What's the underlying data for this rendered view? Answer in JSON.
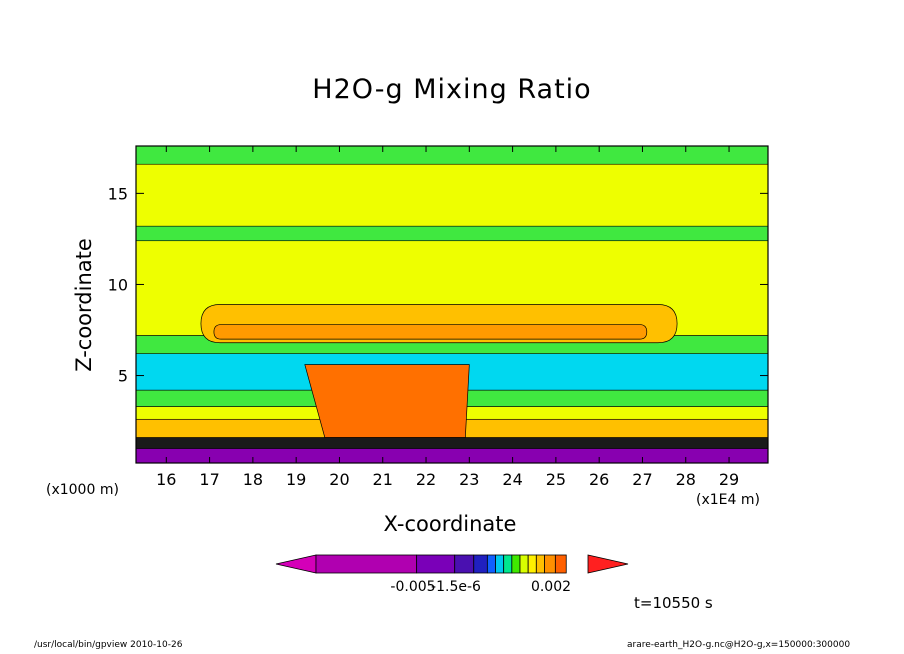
{
  "chart_data": {
    "type": "heatmap",
    "title": "H2O-g Mixing Ratio",
    "xlabel": "X-coordinate",
    "ylabel": "Z-coordinate",
    "x_unit": "(x1E4 m)",
    "y_unit": "(x1000 m)",
    "xlim": [
      15.3,
      29.9
    ],
    "ylim": [
      0.2,
      17.6
    ],
    "x_ticks": [
      16,
      17,
      18,
      19,
      20,
      21,
      22,
      23,
      24,
      25,
      26,
      27,
      28,
      29
    ],
    "x_tick_labels": [
      "16",
      "17",
      "18",
      "19",
      "20",
      "21",
      "22",
      "23",
      "24",
      "25",
      "26",
      "27",
      "28",
      "29"
    ],
    "y_ticks": [
      5,
      10,
      15
    ],
    "y_tick_labels": [
      "5",
      "10",
      "15"
    ],
    "colorbar": {
      "tick_labels": [
        "-0.005",
        "-1.5e-6",
        "0.002"
      ],
      "colors": [
        "#d400b8",
        "#b000b0",
        "#7a00b8",
        "#4a10b0",
        "#2020c0",
        "#1060ff",
        "#00c8f0",
        "#00e890",
        "#40e800",
        "#d8ff00",
        "#fff000",
        "#ffc000",
        "#ff9000",
        "#ff6000",
        "#ff2020"
      ],
      "extend": "both"
    },
    "bands_bottom_to_top": [
      {
        "color": "#8800b0",
        "z_bottom": 0.2,
        "z_top": 1.0
      },
      {
        "color": "#1a1a1a",
        "z_bottom": 1.0,
        "z_top": 1.6
      },
      {
        "color": "#ffc000",
        "z_bottom": 1.6,
        "z_top": 2.6
      },
      {
        "color": "#eeff00",
        "z_bottom": 2.6,
        "z_top": 3.3
      },
      {
        "color": "#40e840",
        "z_bottom": 3.3,
        "z_top": 4.2
      },
      {
        "color": "#00d8f0",
        "z_bottom": 4.2,
        "z_top": 6.2
      },
      {
        "color": "#40e840",
        "z_bottom": 6.2,
        "z_top": 7.2
      },
      {
        "color": "#eeff00",
        "z_bottom": 7.2,
        "z_top": 12.4
      },
      {
        "color": "#40e840",
        "z_bottom": 12.4,
        "z_top": 13.2
      },
      {
        "color": "#eeff00",
        "z_bottom": 13.2,
        "z_top": 16.6
      },
      {
        "color": "#40e840",
        "z_bottom": 16.6,
        "z_top": 17.6
      }
    ],
    "anvil": {
      "outer": {
        "color": "#ffc000",
        "x_range": [
          16.8,
          27.8
        ],
        "z_range": [
          6.8,
          8.9
        ]
      },
      "inner": {
        "color": "#ff9a00",
        "x_range": [
          17.1,
          27.1
        ],
        "z_range": [
          7.0,
          7.8
        ]
      },
      "core": {
        "color": "#ff7000",
        "x_range": [
          19.2,
          23.0
        ],
        "z_range": [
          1.6,
          5.6
        ]
      }
    },
    "time_label": "t=10550 s"
  },
  "footer": {
    "left": "/usr/local/bin/gpview  2010-10-26",
    "right": "arare-earth_H2O-g.nc@H2O-g,x=150000:300000"
  }
}
